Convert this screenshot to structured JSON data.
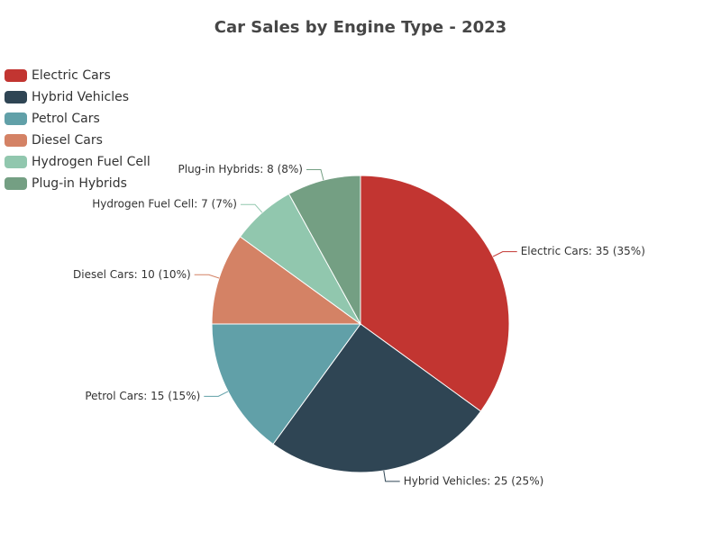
{
  "chart_data": {
    "type": "pie",
    "title": "Car Sales by Engine Type - 2023",
    "legend_position": "top-left",
    "slices": [
      {
        "name": "Electric Cars",
        "value": 35,
        "percent": 35,
        "label": "Electric Cars: 35 (35%)",
        "color": "#c23531"
      },
      {
        "name": "Hybrid Vehicles",
        "value": 25,
        "percent": 25,
        "label": "Hybrid Vehicles: 25 (25%)",
        "color": "#2f4554"
      },
      {
        "name": "Petrol Cars",
        "value": 15,
        "percent": 15,
        "label": "Petrol Cars: 15 (15%)",
        "color": "#61a0a8"
      },
      {
        "name": "Diesel Cars",
        "value": 10,
        "percent": 10,
        "label": "Diesel Cars: 10 (10%)",
        "color": "#d48265"
      },
      {
        "name": "Hydrogen Fuel Cell",
        "value": 7,
        "percent": 7,
        "label": "Hydrogen Fuel Cell: 7 (7%)",
        "color": "#91c7ae"
      },
      {
        "name": "Plug-in Hybrids",
        "value": 8,
        "percent": 8,
        "label": "Plug-in Hybrids: 8 (8%)",
        "color": "#749f83"
      }
    ]
  }
}
